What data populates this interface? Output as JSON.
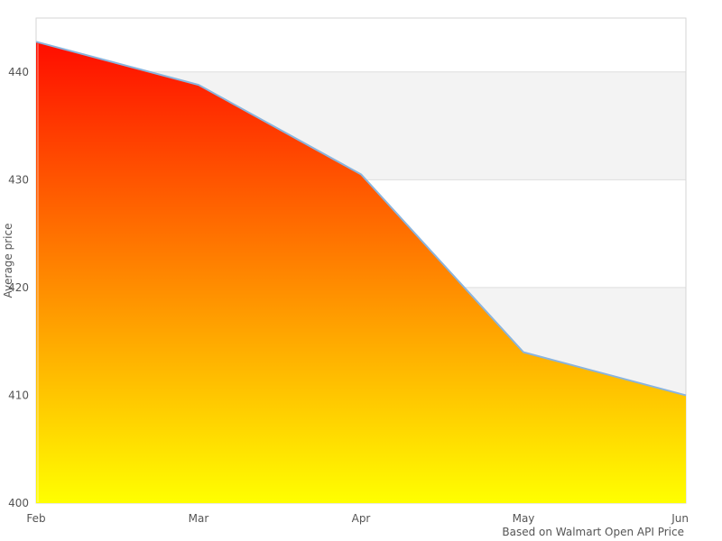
{
  "chart_data": {
    "type": "area",
    "title": "",
    "x": [
      "Feb",
      "Mar",
      "Apr",
      "May",
      "Jun"
    ],
    "series": [
      {
        "name": "Average price",
        "values": [
          442.8,
          438.8,
          430.5,
          414.0,
          410.0
        ]
      }
    ],
    "xlabel": "",
    "ylabel": "Average price",
    "ylim": [
      400,
      445
    ],
    "yticks": [
      400,
      410,
      420,
      430,
      440
    ],
    "grid": true,
    "alternate_grid_bands": true,
    "legend": "none",
    "caption": "Based on Walmart Open API Price",
    "colors": {
      "line": "#8ab4dd",
      "gradient_top": "#ff0000",
      "gradient_mid": "#ff7f00",
      "gradient_bottom": "#ffff00",
      "band_fill": "#f3f3f3",
      "gridline": "#dedede",
      "plot_border": "#d6d6d6",
      "tick_text": "#555555",
      "axis_title_text": "#555555",
      "caption_text": "#555555",
      "background": "#ffffff"
    }
  }
}
